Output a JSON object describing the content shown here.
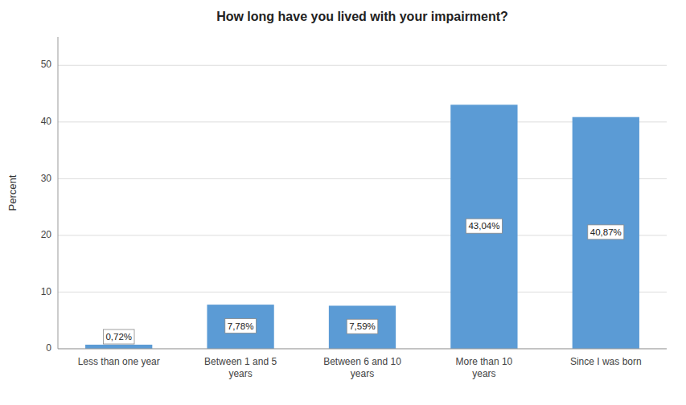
{
  "chart_data": {
    "type": "bar",
    "title": "How long have you lived with your impairment?",
    "categories": [
      "Less than one year",
      "Between 1 and 5\nyears",
      "Between 6 and 10\nyears",
      "More than 10\nyears",
      "Since I was born"
    ],
    "values": [
      0.72,
      7.78,
      7.59,
      43.04,
      40.87
    ],
    "value_labels": [
      "0,72%",
      "7,78%",
      "7,59%",
      "43,04%",
      "40,87%"
    ],
    "data_labels": true,
    "color": "#5B9BD5",
    "ylabel": "Percent",
    "ylim": [
      0,
      55
    ],
    "yticks": [
      0,
      10,
      20,
      30,
      40,
      50
    ],
    "grid": true
  }
}
